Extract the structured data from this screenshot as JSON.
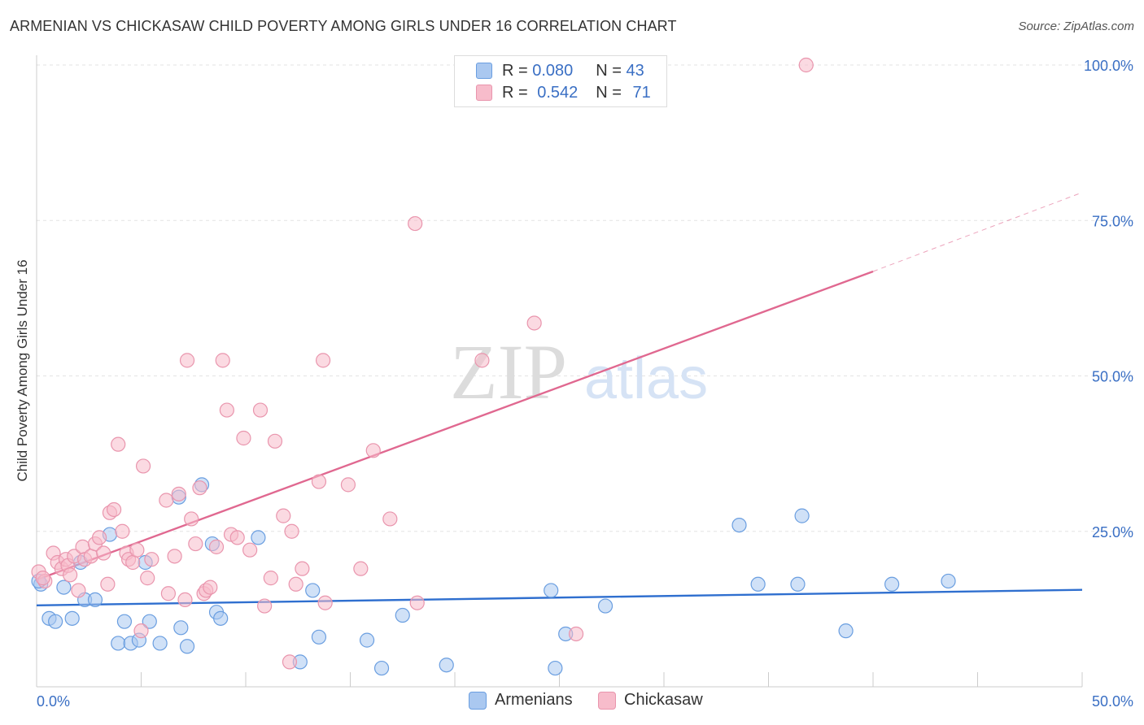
{
  "title": "ARMENIAN VS CHICKASAW CHILD POVERTY AMONG GIRLS UNDER 16 CORRELATION CHART",
  "source": "Source: ZipAtlas.com",
  "watermark": {
    "zip": "ZIP",
    "atlas": "atlas"
  },
  "legend": {
    "armenians": {
      "r_label": "R =",
      "r_value": "0.080",
      "n_label": "N =",
      "n_value": "43"
    },
    "chickasaw": {
      "r_label": "R =",
      "r_value": "0.542",
      "n_label": "N =",
      "n_value": "71"
    }
  },
  "bottom_legend": {
    "armenians": "Armenians",
    "chickasaw": "Chickasaw"
  },
  "colors": {
    "armenians_fill": "#aac8f0",
    "armenians_stroke": "#6a9ee0",
    "armenians_line": "#2f6fcf",
    "chickasaw_fill": "#f7bccb",
    "chickasaw_stroke": "#e995ad",
    "chickasaw_line": "#e06890",
    "tick_label": "#3a6fc4",
    "grid": "#e3e3e3"
  },
  "chart_data": {
    "type": "scatter",
    "title": "ARMENIAN VS CHICKASAW CHILD POVERTY AMONG GIRLS UNDER 16 CORRELATION CHART",
    "xlabel": "",
    "ylabel": "Child Poverty Among Girls Under 16",
    "xlim": [
      0,
      50
    ],
    "ylim": [
      0,
      100
    ],
    "x_tick_labels": [
      "0.0%",
      "50.0%"
    ],
    "y_ticks": [
      25,
      50,
      75,
      100
    ],
    "y_tick_labels": [
      "25.0%",
      "50.0%",
      "75.0%",
      "100.0%"
    ],
    "grid": true,
    "legend_position": "top-center",
    "series": [
      {
        "name": "Armenians",
        "r": 0.08,
        "n": 43,
        "trend": {
          "x": [
            0,
            50
          ],
          "y": [
            13.1,
            15.6
          ]
        },
        "points": [
          [
            0.2,
            16.5
          ],
          [
            0.6,
            11.0
          ],
          [
            0.9,
            10.5
          ],
          [
            1.3,
            16.0
          ],
          [
            1.7,
            11.0
          ],
          [
            2.1,
            20.0
          ],
          [
            2.3,
            14.0
          ],
          [
            2.8,
            14.0
          ],
          [
            3.5,
            24.5
          ],
          [
            3.9,
            7.0
          ],
          [
            4.2,
            10.5
          ],
          [
            4.5,
            7.0
          ],
          [
            4.9,
            7.5
          ],
          [
            5.2,
            20.0
          ],
          [
            5.4,
            10.5
          ],
          [
            5.9,
            7.0
          ],
          [
            6.8,
            30.5
          ],
          [
            6.9,
            9.5
          ],
          [
            7.2,
            6.5
          ],
          [
            7.9,
            32.5
          ],
          [
            8.4,
            23.0
          ],
          [
            8.6,
            12.0
          ],
          [
            8.8,
            11.0
          ],
          [
            10.6,
            24.0
          ],
          [
            12.6,
            4.0
          ],
          [
            13.2,
            15.5
          ],
          [
            13.5,
            8.0
          ],
          [
            15.8,
            7.5
          ],
          [
            16.5,
            3.0
          ],
          [
            17.5,
            11.5
          ],
          [
            19.6,
            3.5
          ],
          [
            24.6,
            15.5
          ],
          [
            24.8,
            3.0
          ],
          [
            25.3,
            8.5
          ],
          [
            27.2,
            13.0
          ],
          [
            33.6,
            26.0
          ],
          [
            34.5,
            16.5
          ],
          [
            36.4,
            16.5
          ],
          [
            36.6,
            27.5
          ],
          [
            38.7,
            9.0
          ],
          [
            40.9,
            16.5
          ],
          [
            43.6,
            17.0
          ],
          [
            0.1,
            17.0
          ]
        ]
      },
      {
        "name": "Chickasaw",
        "r": 0.542,
        "n": 71,
        "trend": {
          "x": [
            0,
            40
          ],
          "y": [
            17.2,
            66.8
          ]
        },
        "trend_extension": {
          "x": [
            40,
            50
          ],
          "y": [
            66.8,
            79.5
          ]
        },
        "points": [
          [
            0.1,
            18.5
          ],
          [
            0.4,
            17.0
          ],
          [
            0.8,
            21.5
          ],
          [
            1.0,
            20.0
          ],
          [
            1.2,
            19.0
          ],
          [
            1.4,
            20.5
          ],
          [
            1.5,
            19.5
          ],
          [
            1.6,
            18.0
          ],
          [
            1.8,
            21.0
          ],
          [
            2.0,
            15.5
          ],
          [
            2.2,
            22.5
          ],
          [
            2.3,
            20.5
          ],
          [
            2.6,
            21.0
          ],
          [
            2.8,
            23.0
          ],
          [
            3.0,
            24.0
          ],
          [
            3.2,
            21.5
          ],
          [
            3.4,
            16.5
          ],
          [
            3.5,
            28.0
          ],
          [
            3.7,
            28.5
          ],
          [
            3.9,
            39.0
          ],
          [
            4.1,
            25.0
          ],
          [
            4.3,
            21.5
          ],
          [
            4.4,
            20.5
          ],
          [
            4.6,
            20.0
          ],
          [
            4.8,
            22.0
          ],
          [
            5.0,
            9.0
          ],
          [
            5.1,
            35.5
          ],
          [
            5.3,
            17.5
          ],
          [
            5.5,
            20.5
          ],
          [
            6.2,
            30.0
          ],
          [
            6.3,
            15.0
          ],
          [
            6.6,
            21.0
          ],
          [
            6.8,
            31.0
          ],
          [
            7.1,
            14.0
          ],
          [
            7.2,
            52.5
          ],
          [
            7.4,
            27.0
          ],
          [
            7.6,
            23.0
          ],
          [
            7.8,
            32.0
          ],
          [
            8.0,
            15.0
          ],
          [
            8.1,
            15.5
          ],
          [
            8.3,
            16.0
          ],
          [
            8.6,
            22.5
          ],
          [
            8.9,
            52.5
          ],
          [
            9.1,
            44.5
          ],
          [
            9.3,
            24.5
          ],
          [
            9.6,
            24.0
          ],
          [
            9.9,
            40.0
          ],
          [
            10.2,
            22.0
          ],
          [
            10.7,
            44.5
          ],
          [
            10.9,
            13.0
          ],
          [
            11.2,
            17.5
          ],
          [
            11.4,
            39.5
          ],
          [
            11.8,
            27.5
          ],
          [
            12.1,
            4.0
          ],
          [
            12.2,
            25.0
          ],
          [
            12.4,
            16.5
          ],
          [
            12.7,
            19.0
          ],
          [
            13.5,
            33.0
          ],
          [
            13.7,
            52.5
          ],
          [
            13.8,
            13.5
          ],
          [
            14.9,
            32.5
          ],
          [
            15.5,
            19.0
          ],
          [
            16.1,
            38.0
          ],
          [
            16.9,
            27.0
          ],
          [
            18.1,
            74.5
          ],
          [
            18.2,
            13.5
          ],
          [
            21.3,
            52.5
          ],
          [
            23.8,
            58.5
          ],
          [
            25.8,
            8.5
          ],
          [
            36.8,
            100.0
          ],
          [
            0.3,
            17.5
          ]
        ]
      }
    ]
  }
}
